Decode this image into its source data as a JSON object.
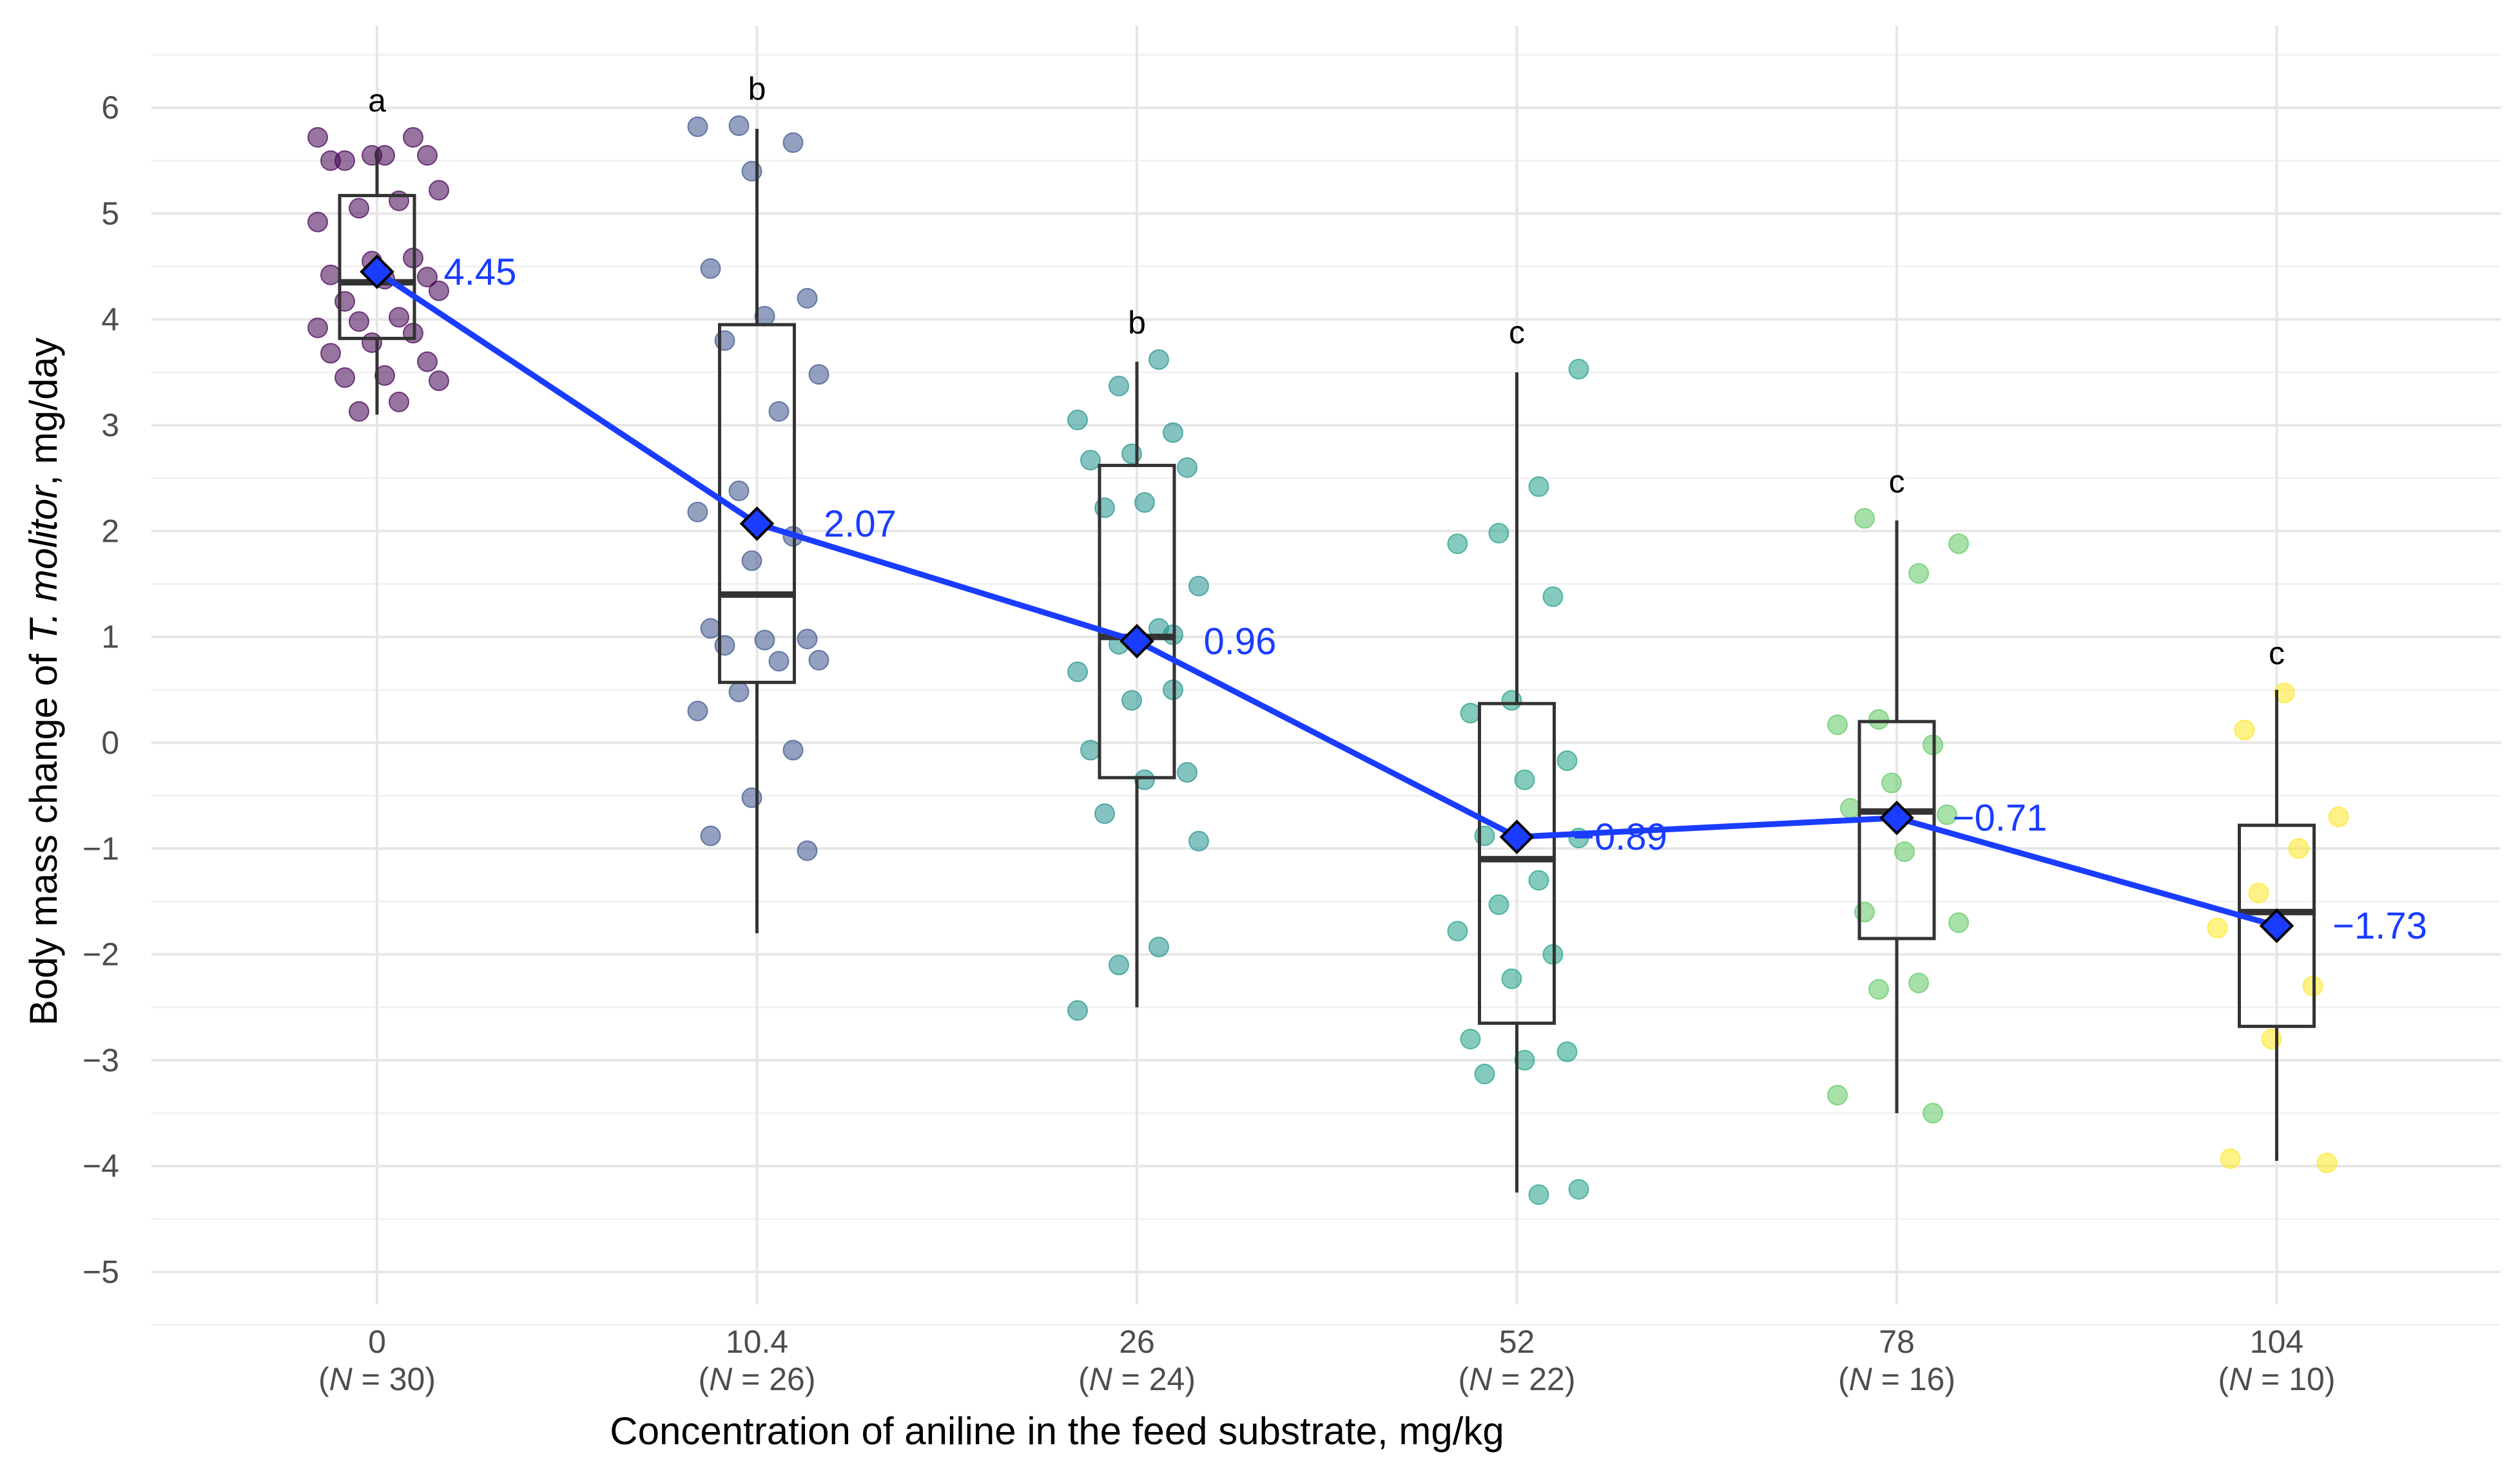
{
  "chart_data": {
    "type": "box",
    "xlabel": "Concentration of  aniline  in the feed substrate, mg/kg",
    "ylabel_prefix": "Body mass change of ",
    "ylabel_italic": "T. molitor",
    "ylabel_suffix": ", mg/day",
    "ylim": [
      -5.3,
      6.5
    ],
    "y_ticks": [
      "−5",
      "−4",
      "−3",
      "−2",
      "−1",
      "0",
      "1",
      "2",
      "3",
      "4",
      "5",
      "6"
    ],
    "y_tick_values": [
      -5,
      -4,
      -3,
      -2,
      -1,
      0,
      1,
      2,
      3,
      4,
      5,
      6
    ],
    "grid": true,
    "mean_line_color": "#1a3cff",
    "groups": [
      {
        "category": "0",
        "n_text": "N",
        "n_value": " = 30)",
        "color": "#440154",
        "letter": "a",
        "box": {
          "min": 3.1,
          "q1": 3.82,
          "median": 4.35,
          "q3": 5.17,
          "max": 5.6
        },
        "mean": 4.45,
        "mean_label": "4.45",
        "points": [
          5.72,
          5.72,
          5.55,
          5.5,
          5.55,
          5.55,
          5.5,
          5.22,
          5.12,
          5.05,
          4.92,
          4.58,
          4.55,
          4.42,
          4.4,
          4.38,
          4.17,
          4.27,
          4.02,
          3.98,
          3.92,
          3.87,
          3.78,
          3.68,
          3.6,
          3.47,
          3.45,
          3.42,
          3.22,
          3.13
        ]
      },
      {
        "category": "10.4",
        "n_text": "N",
        "n_value": " = 26)",
        "color": "#3b528b",
        "letter": "b",
        "box": {
          "min": -1.8,
          "q1": 0.57,
          "median": 1.4,
          "q3": 3.95,
          "max": 5.8
        },
        "mean": 2.07,
        "mean_label": "2.07",
        "points": [
          5.83,
          5.82,
          5.67,
          5.4,
          4.48,
          4.2,
          4.03,
          3.8,
          3.48,
          3.13,
          2.38,
          2.18,
          1.95,
          1.72,
          1.08,
          0.98,
          0.97,
          0.92,
          0.78,
          0.77,
          0.48,
          0.3,
          -0.07,
          -0.52,
          -0.88,
          -1.02
        ]
      },
      {
        "category": "26",
        "n_text": "N",
        "n_value": " = 24)",
        "color": "#21918c",
        "letter": "b",
        "box": {
          "min": -2.5,
          "q1": -0.33,
          "median": 1.0,
          "q3": 2.62,
          "max": 3.6
        },
        "mean": 0.96,
        "mean_label": "0.96",
        "points": [
          3.62,
          3.37,
          3.05,
          2.93,
          2.73,
          2.67,
          2.6,
          2.27,
          2.22,
          1.48,
          1.08,
          0.93,
          0.67,
          0.5,
          0.4,
          -0.07,
          -0.28,
          -0.35,
          -0.67,
          -0.93,
          -1.93,
          -2.1,
          -2.53,
          1.02
        ]
      },
      {
        "category": "52",
        "n_text": "N",
        "n_value": " = 22)",
        "color": "#1fa187",
        "letter": "c",
        "box": {
          "min": -4.25,
          "q1": -2.65,
          "median": -1.1,
          "q3": 0.37,
          "max": 3.5
        },
        "mean": -0.89,
        "mean_label": "−0.89",
        "points": [
          3.53,
          2.42,
          1.98,
          1.88,
          1.38,
          0.4,
          0.28,
          -0.17,
          -0.35,
          -0.88,
          -0.9,
          -1.3,
          -1.53,
          -1.78,
          -2.0,
          -2.23,
          -2.8,
          -2.92,
          -3.0,
          -3.13,
          -4.22,
          -4.27
        ]
      },
      {
        "category": "78",
        "n_text": "N",
        "n_value": " = 16)",
        "color": "#5ec962",
        "letter": "c",
        "box": {
          "min": -3.5,
          "q1": -1.85,
          "median": -0.65,
          "q3": 0.2,
          "max": 2.1
        },
        "mean": -0.71,
        "mean_label": "−0.71",
        "points": [
          2.12,
          1.88,
          1.6,
          0.22,
          0.17,
          -0.02,
          -0.38,
          -0.62,
          -0.68,
          -1.03,
          -1.6,
          -1.7,
          -2.27,
          -2.33,
          -3.33,
          -3.5
        ]
      },
      {
        "category": "104",
        "n_text": "N",
        "n_value": " = 10)",
        "color": "#fde725",
        "letter": "c",
        "box": {
          "min": -3.95,
          "q1": -2.68,
          "median": -1.6,
          "q3": -0.78,
          "max": 0.5
        },
        "mean": -1.73,
        "mean_label": "−1.73",
        "points": [
          0.47,
          0.12,
          -0.7,
          -1.0,
          -1.42,
          -1.75,
          -2.3,
          -2.8,
          -3.93,
          -3.97
        ]
      }
    ]
  }
}
